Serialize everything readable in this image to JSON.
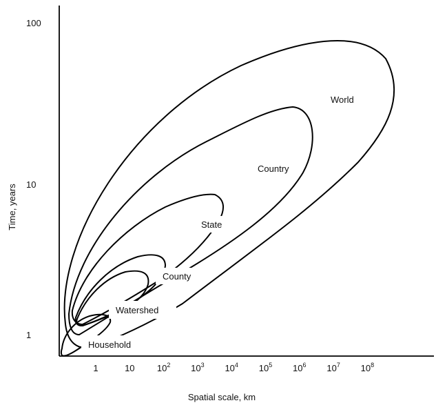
{
  "diagram": {
    "y_axis": {
      "title": "Time, years",
      "ticks": [
        {
          "label": "100",
          "value": 100
        },
        {
          "label": "10",
          "value": 10
        },
        {
          "label": "1",
          "value": 1
        }
      ],
      "scale": "log"
    },
    "x_axis": {
      "title": "Spatial scale, km",
      "scale": "log",
      "ticks": [
        {
          "base": "1",
          "exp": "",
          "value": 1
        },
        {
          "base": "10",
          "exp": "",
          "value": 10
        },
        {
          "base": "10",
          "exp": "2",
          "value": 100
        },
        {
          "base": "10",
          "exp": "3",
          "value": 1000
        },
        {
          "base": "10",
          "exp": "4",
          "value": 10000
        },
        {
          "base": "10",
          "exp": "5",
          "value": 100000
        },
        {
          "base": "10",
          "exp": "6",
          "value": 1000000
        },
        {
          "base": "10",
          "exp": "7",
          "value": 10000000
        },
        {
          "base": "10",
          "exp": "8",
          "value": 100000000
        }
      ]
    },
    "regions": [
      {
        "id": "world",
        "label": "World",
        "pattern": "none"
      },
      {
        "id": "country",
        "label": "Country",
        "pattern": "dashes"
      },
      {
        "id": "state",
        "label": "State",
        "pattern": "grid"
      },
      {
        "id": "county",
        "label": "County",
        "pattern": "dots"
      },
      {
        "id": "watershed",
        "label": "Watershed",
        "pattern": "fine-dots"
      },
      {
        "id": "household",
        "label": "Household",
        "pattern": "checker"
      }
    ]
  }
}
